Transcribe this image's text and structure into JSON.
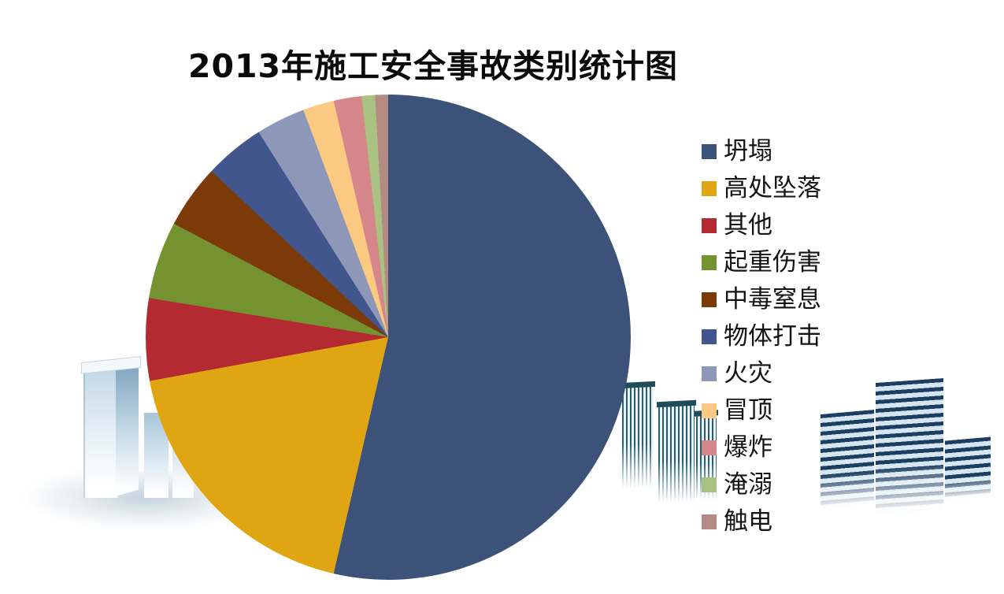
{
  "chart_data": {
    "type": "pie",
    "title": "2013年施工安全事故类别统计图",
    "legend_position": "right",
    "direction": "clockwise",
    "start_angle_deg": 0,
    "slices": [
      {
        "label": "坍塌",
        "color": "#3D5278",
        "angle_deg": 193.0,
        "percent": 53.6
      },
      {
        "label": "高处坠落",
        "color": "#DFA512",
        "angle_deg": 66.6,
        "percent": 18.5
      },
      {
        "label": "其他",
        "color": "#B32B31",
        "angle_deg": 19.7,
        "percent": 5.5
      },
      {
        "label": "起重伤害",
        "color": "#74922F",
        "angle_deg": 18.6,
        "percent": 5.2
      },
      {
        "label": "中毒窒息",
        "color": "#7C3A08",
        "angle_deg": 15.3,
        "percent": 4.3
      },
      {
        "label": "物体打击",
        "color": "#40568C",
        "angle_deg": 14.5,
        "percent": 4.0
      },
      {
        "label": "火灾",
        "color": "#8D97B8",
        "angle_deg": 11.8,
        "percent": 3.3
      },
      {
        "label": "冒顶",
        "color": "#FBC981",
        "angle_deg": 7.5,
        "percent": 2.1
      },
      {
        "label": "爆炸",
        "color": "#D5868B",
        "angle_deg": 6.7,
        "percent": 1.9
      },
      {
        "label": "淹溺",
        "color": "#A9C181",
        "angle_deg": 3.2,
        "percent": 0.9
      },
      {
        "label": "触电",
        "color": "#B38B82",
        "angle_deg": 3.1,
        "percent": 0.9
      }
    ]
  },
  "decor": {
    "left_buildings": "pale-skyscrapers-illustration",
    "middle_buildings": "teal-striped-skyscrapers-illustration",
    "right_buildings": "navy-slab-skyscrapers-illustration"
  }
}
